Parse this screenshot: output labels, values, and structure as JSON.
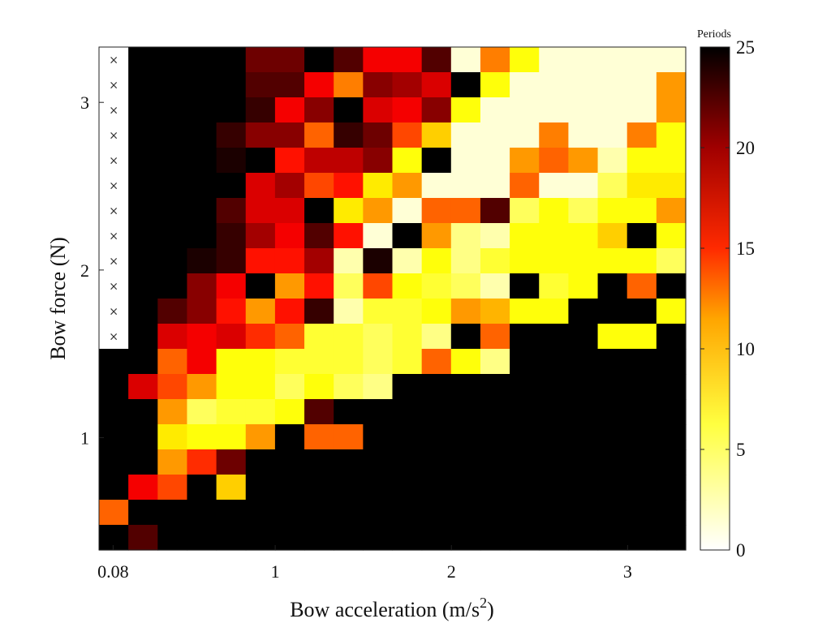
{
  "chart_data": {
    "type": "heatmap",
    "title": "",
    "xlabel": "Bow acceleration (m/s",
    "xlabel_superscript": "2",
    "xlabel_suffix": ")",
    "ylabel": "Bow force (N)",
    "x_tick_labels": [
      "0.08",
      "1",
      "2",
      "3"
    ],
    "x_tick_values": [
      0.08,
      1,
      2,
      3
    ],
    "y_tick_labels": [
      "1",
      "2",
      "3"
    ],
    "y_tick_values": [
      1,
      2,
      3
    ],
    "x_centers": [
      0.08,
      0.25,
      0.42,
      0.58,
      0.75,
      0.92,
      1.08,
      1.25,
      1.42,
      1.58,
      1.75,
      1.92,
      2.08,
      2.25,
      2.42,
      2.58,
      2.75,
      2.92,
      3.08,
      3.25
    ],
    "y_centers": [
      3.25,
      3.1,
      2.95,
      2.8,
      2.65,
      2.5,
      2.35,
      2.2,
      2.05,
      1.9,
      1.75,
      1.6,
      1.45,
      1.3,
      1.15,
      1.0,
      0.85,
      0.7,
      0.55,
      0.4
    ],
    "xlim": [
      0.0,
      3.33
    ],
    "ylim": [
      0.33,
      3.33
    ],
    "colorbar": {
      "title": "Periods",
      "min": 0,
      "max": 25,
      "tick_labels": [
        "0",
        "5",
        "10",
        "15",
        "20",
        "25"
      ],
      "tick_values": [
        0,
        5,
        10,
        15,
        20,
        25
      ],
      "colormap": "hot (reversed)"
    },
    "values": [
      [
        -1,
        25,
        25,
        25,
        25,
        21,
        21,
        25,
        22,
        16,
        16,
        22,
        1,
        11,
        6,
        1,
        1,
        1,
        1,
        1
      ],
      [
        -1,
        25,
        25,
        25,
        25,
        22,
        22,
        16,
        11,
        20,
        19,
        17,
        25,
        6,
        1,
        1,
        1,
        1,
        1,
        10
      ],
      [
        -1,
        25,
        25,
        25,
        25,
        23,
        16,
        20,
        25,
        17,
        16,
        20,
        6,
        1,
        1,
        1,
        1,
        1,
        1,
        10
      ],
      [
        -1,
        25,
        25,
        25,
        23,
        20,
        20,
        12,
        23,
        21,
        13,
        8,
        1,
        1,
        1,
        11,
        1,
        1,
        11,
        6
      ],
      [
        -1,
        25,
        25,
        25,
        24,
        25,
        15,
        18,
        18,
        20,
        6,
        25,
        1,
        1,
        10,
        12,
        10,
        2,
        6,
        6
      ],
      [
        -1,
        25,
        25,
        25,
        25,
        17,
        19,
        13,
        15,
        7,
        10,
        1,
        1,
        1,
        12,
        1,
        1,
        4,
        7,
        7
      ],
      [
        -1,
        25,
        25,
        25,
        22,
        17,
        17,
        25,
        7,
        10,
        1,
        12,
        12,
        22,
        4,
        6,
        4,
        6,
        6,
        10
      ],
      [
        -1,
        25,
        25,
        25,
        23,
        19,
        16,
        22,
        15,
        1,
        25,
        10,
        3,
        2,
        6,
        6,
        6,
        8,
        25,
        6
      ],
      [
        -1,
        25,
        25,
        24,
        23,
        15,
        15,
        19,
        2,
        24,
        2,
        6,
        3,
        5,
        6,
        6,
        6,
        6,
        6,
        4
      ],
      [
        -1,
        25,
        25,
        20,
        16,
        25,
        10,
        15,
        4,
        13,
        6,
        5,
        4,
        2,
        25,
        5,
        6,
        25,
        12,
        25
      ],
      [
        -1,
        25,
        22,
        20,
        15,
        10,
        15,
        23,
        2,
        5,
        5,
        6,
        10,
        9,
        6,
        6,
        25,
        25,
        25,
        6
      ],
      [
        -1,
        25,
        17,
        16,
        17,
        14,
        12,
        5,
        5,
        4,
        5,
        3,
        25,
        12,
        25,
        25,
        25,
        6,
        6,
        25
      ],
      [
        25,
        25,
        12,
        16,
        6,
        6,
        5,
        5,
        5,
        4,
        5,
        12,
        6,
        3,
        25,
        25,
        25,
        25,
        25,
        25
      ],
      [
        25,
        17,
        13,
        10,
        6,
        6,
        4,
        6,
        4,
        3,
        25,
        25,
        25,
        25,
        25,
        25,
        25,
        25,
        25,
        25
      ],
      [
        25,
        25,
        10,
        4,
        5,
        5,
        6,
        22,
        25,
        25,
        25,
        25,
        25,
        25,
        25,
        25,
        25,
        25,
        25,
        25
      ],
      [
        25,
        25,
        7,
        6,
        6,
        10,
        25,
        12,
        12,
        25,
        25,
        25,
        25,
        25,
        25,
        25,
        25,
        25,
        25,
        25
      ],
      [
        25,
        25,
        10,
        14,
        21,
        25,
        25,
        25,
        25,
        25,
        25,
        25,
        25,
        25,
        25,
        25,
        25,
        25,
        25,
        25
      ],
      [
        25,
        16,
        13,
        25,
        8,
        25,
        25,
        25,
        25,
        25,
        25,
        25,
        25,
        25,
        25,
        25,
        25,
        25,
        25,
        25
      ],
      [
        12,
        25,
        25,
        25,
        25,
        25,
        25,
        25,
        25,
        25,
        25,
        25,
        25,
        25,
        25,
        25,
        25,
        25,
        25,
        25
      ],
      [
        25,
        22,
        25,
        25,
        25,
        25,
        25,
        25,
        25,
        25,
        25,
        25,
        25,
        25,
        25,
        25,
        25,
        25,
        25,
        25
      ]
    ],
    "missing_marker": "×",
    "grid": false
  }
}
